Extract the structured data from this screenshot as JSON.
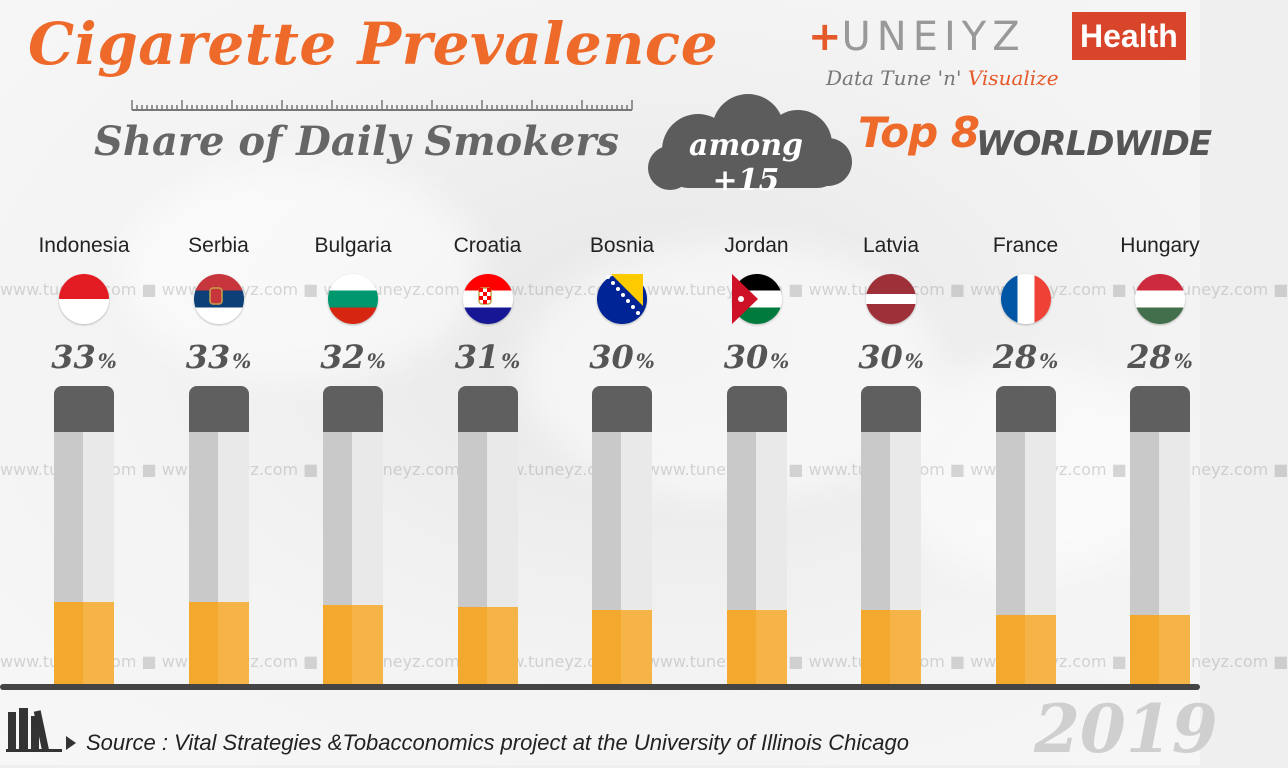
{
  "header": {
    "title": "Cigarette Prevalence",
    "subtitle": "Share of Daily Smokers",
    "badge": "among +15",
    "top_label": "Top 8",
    "top_suffix": "WORLDWIDE"
  },
  "brand": {
    "plus": "+",
    "name": "UNEIYZ",
    "health": "Health",
    "tagline_main": "Data Tune 'n' ",
    "tagline_accent": "Visualize"
  },
  "watermark": "www.tuneyz.com ■ www.tuneyz.com ■ www.tuneyz.com ■ www.tuneyz.com ■ www.tuneyz.com ■ www.tuneyz.com ■ www.tuneyz.com ■ www.tuneyz.com ■",
  "chart_data": {
    "type": "bar",
    "title": "Cigarette Prevalence",
    "subtitle": "Share of Daily Smokers",
    "categories": [
      "Indonesia",
      "Serbia",
      "Bulgaria",
      "Croatia",
      "Bosnia",
      "Jordan",
      "Latvia",
      "France",
      "Hungary"
    ],
    "values": [
      33,
      33,
      32,
      31,
      30,
      30,
      30,
      28,
      28
    ],
    "unit": "%",
    "ylim": [
      0,
      100
    ],
    "bar_color": "#F2A92E",
    "grid": false,
    "legend": "none"
  },
  "footer": {
    "source": "Source : Vital Strategies &Tobacconomics project at the University of Illinois Chicago",
    "year": "2019"
  },
  "colors": {
    "accent": "#EE6A2A",
    "brand_red": "#D9452B",
    "cap_gray": "#5F5F5F",
    "tobacco": "#F2A92E"
  }
}
